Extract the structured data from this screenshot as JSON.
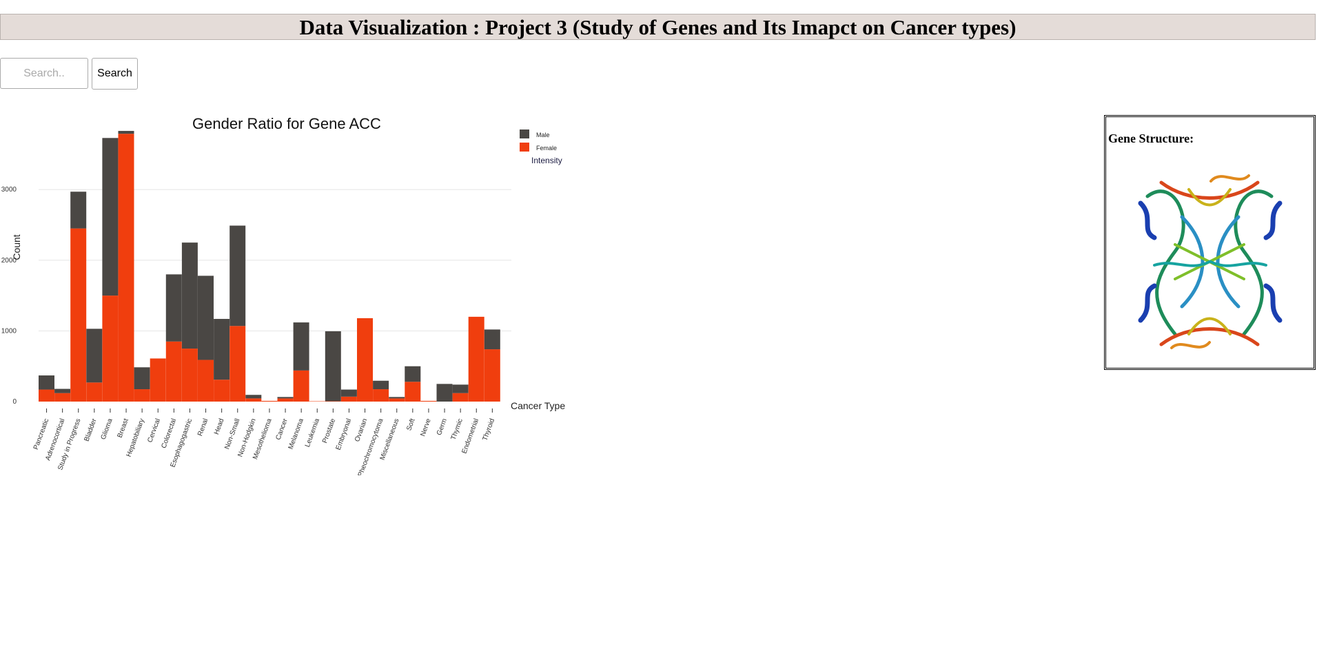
{
  "header": {
    "title": "Data Visualization : Project 3 (Study of Genes and Its Imapct on Cancer types)"
  },
  "search": {
    "placeholder": "Search..",
    "value": "",
    "button_label": "Search"
  },
  "gene_panel": {
    "title": "Gene Structure:"
  },
  "colors": {
    "male": "#4a4744",
    "female": "#f03e0e",
    "grid": "#e6e6e6",
    "axis_text": "#333333"
  },
  "chart_data": {
    "type": "bar",
    "stacked": true,
    "title": "Gender Ratio for Gene ACC",
    "xlabel": "Cancer Type",
    "ylabel": "Count",
    "ylim": [
      0,
      3850
    ],
    "yticks": [
      0,
      1000,
      2000,
      3000
    ],
    "grid": true,
    "legend_position": "top-right",
    "legend_title": "Intensity",
    "categories": [
      "Pancreatic",
      "Adrenocortical",
      "Study in Progress",
      "Bladder",
      "Glioma",
      "Breast",
      "Hepatobiliary",
      "Cervical",
      "Colorectal",
      "Esophagogastric",
      "Renal",
      "Head",
      "Non-Small",
      "Non-Hodgkin",
      "Mesothelioma",
      "Cancer",
      "Melanoma",
      "Leukemia",
      "Prostate",
      "Embryonal",
      "Ovarian",
      "Pheochromocytoma",
      "Miscellaneous",
      "Soft",
      "Nerve",
      "Germ",
      "Thymic",
      "Endometrial",
      "Thyroid"
    ],
    "series": [
      {
        "name": "Female",
        "values": [
          170,
          120,
          2450,
          270,
          1500,
          3790,
          175,
          610,
          850,
          750,
          590,
          310,
          1070,
          45,
          10,
          45,
          440,
          5,
          5,
          70,
          1180,
          175,
          45,
          280,
          10,
          0,
          120,
          1200,
          740
        ]
      },
      {
        "name": "Male",
        "values": [
          200,
          60,
          520,
          760,
          2230,
          40,
          310,
          0,
          950,
          1500,
          1190,
          860,
          1420,
          50,
          0,
          20,
          680,
          0,
          990,
          100,
          0,
          120,
          20,
          220,
          0,
          250,
          120,
          0,
          280
        ]
      }
    ]
  }
}
